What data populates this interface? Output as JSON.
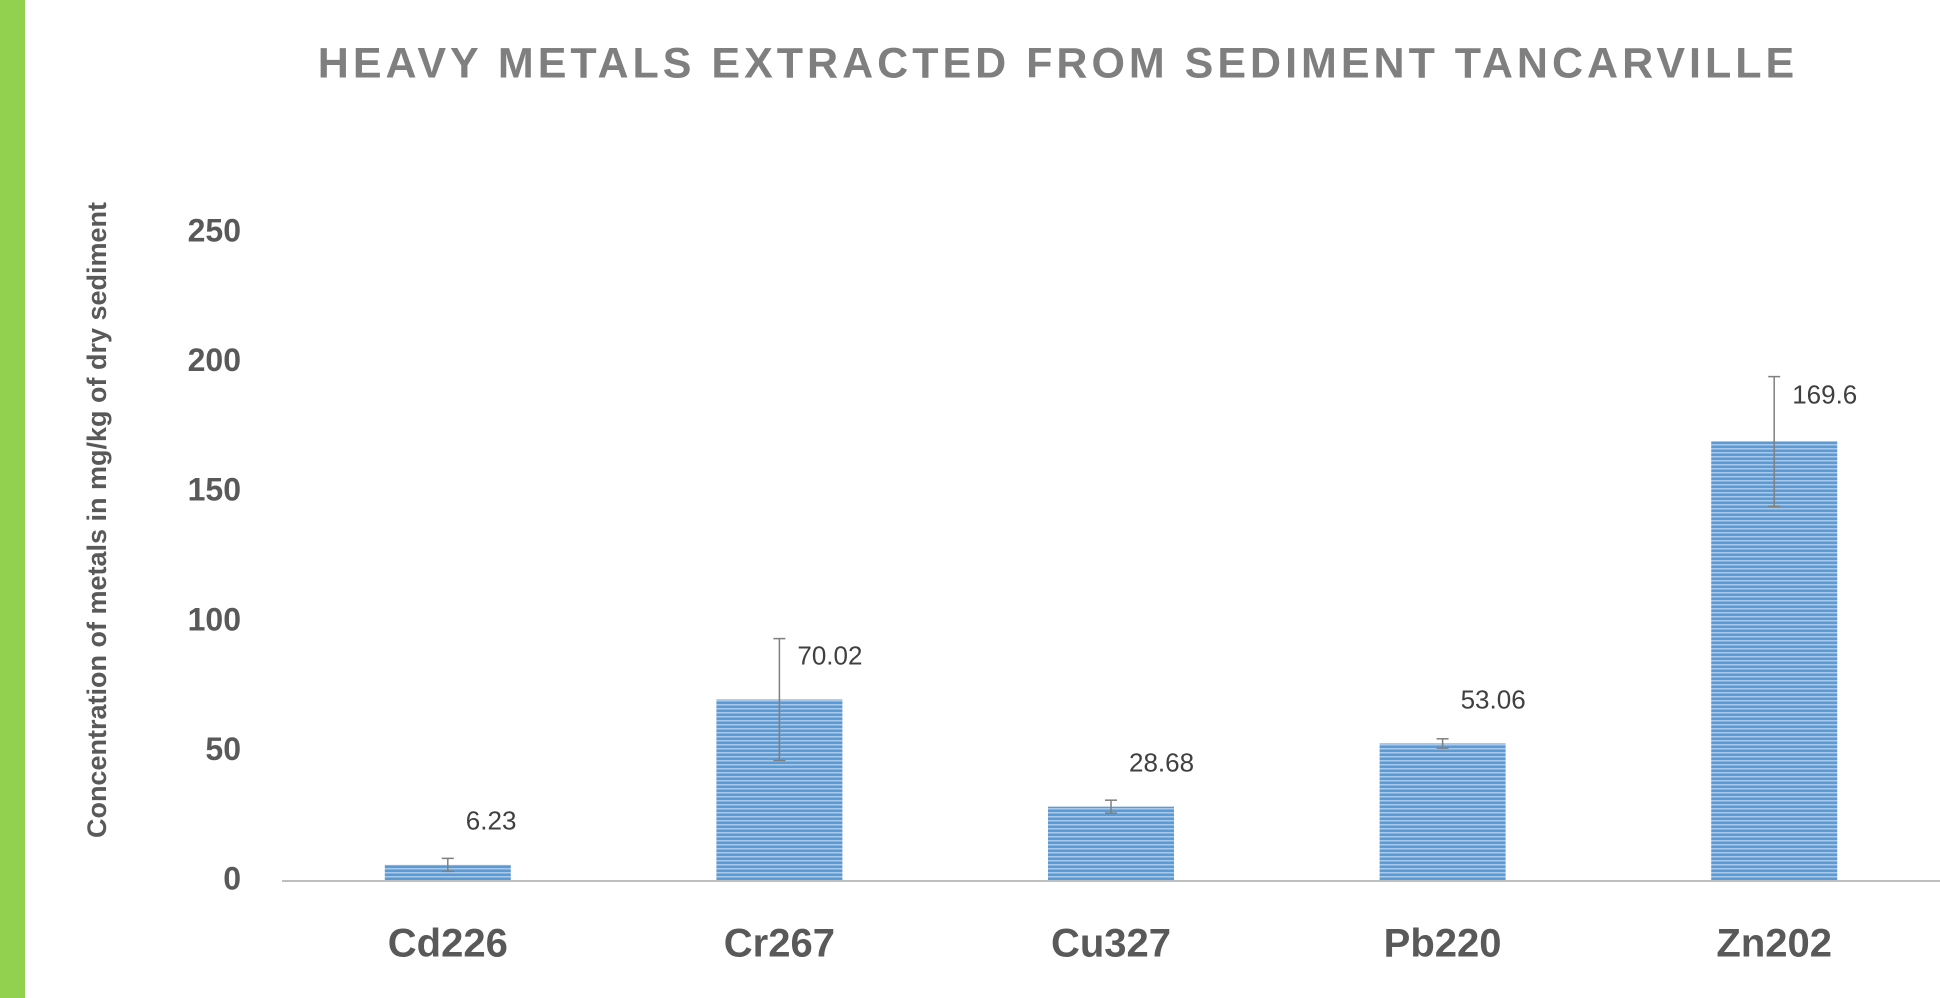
{
  "chart_data": {
    "type": "bar",
    "title": "HEAVY METALS EXTRACTED FROM SEDIMENT TANCARVILLE",
    "y_label": "Concentration of metals in mg/kg of dry sediment",
    "categories": [
      "Cd226",
      "Cr267",
      "Cu327",
      "Pb220",
      "Zn202"
    ],
    "values": [
      6.23,
      70.02,
      28.68,
      53.06,
      169.6
    ],
    "errors": [
      2.5,
      23.5,
      2.5,
      1.8,
      25
    ],
    "color": "#5b9bd5",
    "ylim": [
      0,
      250
    ],
    "yticks": [
      0,
      50,
      100,
      150,
      200,
      250
    ],
    "grid": false
  }
}
